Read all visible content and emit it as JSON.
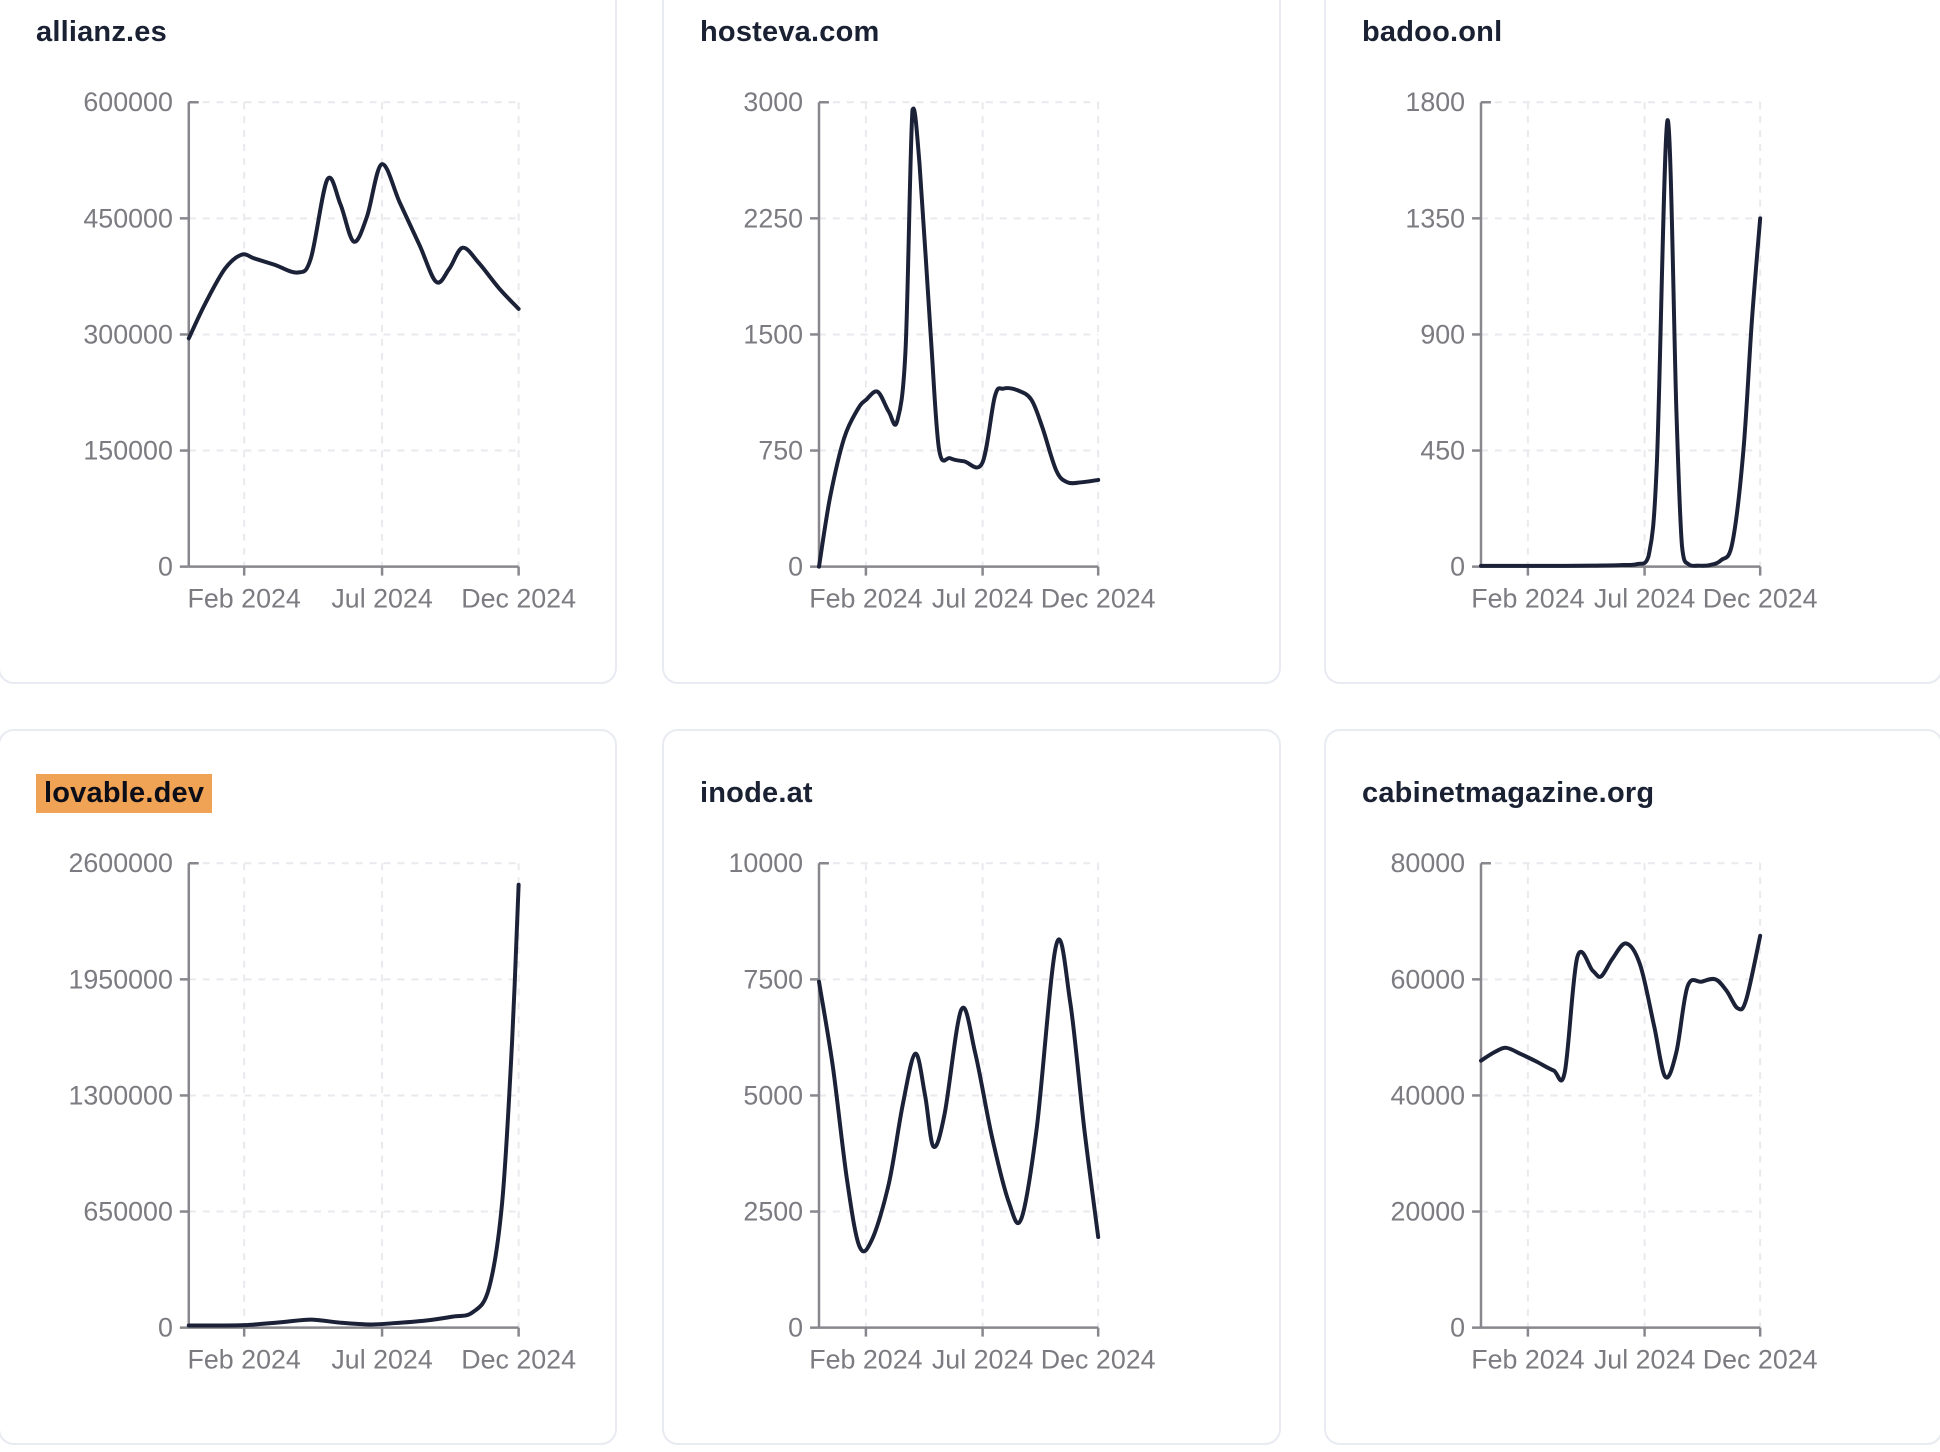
{
  "style": {
    "line_color": "#1b2137",
    "axis_color": "#87878d",
    "tick_label_color": "#7b7b81",
    "grid_color": "#e9e9ee",
    "title_color": "#1a2133",
    "highlight_color": "#f0a255",
    "card_border": "#e9ebf2",
    "card_bg": "#ffffff",
    "page_bg": "#ffffff"
  },
  "chart_data": [
    {
      "type": "line",
      "title": "allianz.es",
      "highlighted": false,
      "ylim": [
        0,
        600000
      ],
      "y_ticks": [
        0,
        150000,
        300000,
        450000,
        600000
      ],
      "x_ticks": [
        {
          "label": "Feb 2024",
          "t": 0.168
        },
        {
          "label": "Jul 2024",
          "t": 0.586
        },
        {
          "label": "Dec 2024",
          "t": 1.0
        }
      ],
      "grid": true,
      "legend": false,
      "points": [
        [
          0,
          295000
        ],
        [
          0.05,
          340000
        ],
        [
          0.11,
          385000
        ],
        [
          0.16,
          403000
        ],
        [
          0.2,
          398000
        ],
        [
          0.26,
          390000
        ],
        [
          0.33,
          380000
        ],
        [
          0.37,
          398000
        ],
        [
          0.42,
          500000
        ],
        [
          0.46,
          468000
        ],
        [
          0.5,
          420000
        ],
        [
          0.54,
          452000
        ],
        [
          0.585,
          520000
        ],
        [
          0.64,
          470000
        ],
        [
          0.7,
          415000
        ],
        [
          0.75,
          368000
        ],
        [
          0.79,
          385000
        ],
        [
          0.83,
          412000
        ],
        [
          0.88,
          392000
        ],
        [
          0.94,
          360000
        ],
        [
          1.0,
          333000
        ]
      ]
    },
    {
      "type": "line",
      "title": "hosteva.com",
      "highlighted": false,
      "ylim": [
        0,
        3000
      ],
      "y_ticks": [
        0,
        750,
        1500,
        2250,
        3000
      ],
      "x_ticks": [
        {
          "label": "Feb 2024",
          "t": 0.168
        },
        {
          "label": "Jul 2024",
          "t": 0.586
        },
        {
          "label": "Dec 2024",
          "t": 1.0
        }
      ],
      "grid": true,
      "legend": false,
      "points": [
        [
          0,
          0
        ],
        [
          0.04,
          450
        ],
        [
          0.09,
          830
        ],
        [
          0.14,
          1020
        ],
        [
          0.17,
          1080
        ],
        [
          0.21,
          1130
        ],
        [
          0.25,
          1000
        ],
        [
          0.28,
          940
        ],
        [
          0.31,
          1400
        ],
        [
          0.335,
          2950
        ],
        [
          0.36,
          2600
        ],
        [
          0.4,
          1500
        ],
        [
          0.43,
          760
        ],
        [
          0.47,
          700
        ],
        [
          0.52,
          680
        ],
        [
          0.585,
          670
        ],
        [
          0.63,
          1100
        ],
        [
          0.66,
          1150
        ],
        [
          0.71,
          1140
        ],
        [
          0.76,
          1080
        ],
        [
          0.8,
          900
        ],
        [
          0.85,
          620
        ],
        [
          0.89,
          545
        ],
        [
          0.94,
          545
        ],
        [
          1.0,
          560
        ]
      ]
    },
    {
      "type": "line",
      "title": "badoo.onl",
      "highlighted": false,
      "ylim": [
        0,
        1800
      ],
      "y_ticks": [
        0,
        450,
        900,
        1350,
        1800
      ],
      "x_ticks": [
        {
          "label": "Feb 2024",
          "t": 0.168
        },
        {
          "label": "Jul 2024",
          "t": 0.586
        },
        {
          "label": "Dec 2024",
          "t": 1.0
        }
      ],
      "grid": true,
      "legend": false,
      "points": [
        [
          0,
          3
        ],
        [
          0.1,
          3
        ],
        [
          0.2,
          3
        ],
        [
          0.3,
          3
        ],
        [
          0.4,
          4
        ],
        [
          0.5,
          6
        ],
        [
          0.56,
          10
        ],
        [
          0.6,
          40
        ],
        [
          0.63,
          400
        ],
        [
          0.668,
          1730
        ],
        [
          0.7,
          600
        ],
        [
          0.72,
          80
        ],
        [
          0.745,
          8
        ],
        [
          0.78,
          4
        ],
        [
          0.82,
          6
        ],
        [
          0.86,
          25
        ],
        [
          0.9,
          90
        ],
        [
          0.94,
          450
        ],
        [
          0.97,
          950
        ],
        [
          1.0,
          1350
        ]
      ]
    },
    {
      "type": "line",
      "title": "lovable.dev",
      "highlighted": true,
      "ylim": [
        0,
        2600000
      ],
      "y_ticks": [
        0,
        650000,
        1300000,
        1950000,
        2600000
      ],
      "x_ticks": [
        {
          "label": "Feb 2024",
          "t": 0.168
        },
        {
          "label": "Jul 2024",
          "t": 0.586
        },
        {
          "label": "Dec 2024",
          "t": 1.0
        }
      ],
      "grid": true,
      "legend": false,
      "points": [
        [
          0,
          12000
        ],
        [
          0.08,
          12000
        ],
        [
          0.17,
          14000
        ],
        [
          0.28,
          30000
        ],
        [
          0.37,
          45000
        ],
        [
          0.46,
          28000
        ],
        [
          0.55,
          18000
        ],
        [
          0.62,
          25000
        ],
        [
          0.72,
          40000
        ],
        [
          0.8,
          62000
        ],
        [
          0.86,
          85000
        ],
        [
          0.91,
          220000
        ],
        [
          0.95,
          700000
        ],
        [
          0.98,
          1600000
        ],
        [
          1.0,
          2480000
        ]
      ]
    },
    {
      "type": "line",
      "title": "inode.at",
      "highlighted": false,
      "ylim": [
        0,
        10000
      ],
      "y_ticks": [
        0,
        2500,
        5000,
        7500,
        10000
      ],
      "x_ticks": [
        {
          "label": "Feb 2024",
          "t": 0.168
        },
        {
          "label": "Jul 2024",
          "t": 0.586
        },
        {
          "label": "Dec 2024",
          "t": 1.0
        }
      ],
      "grid": true,
      "legend": false,
      "points": [
        [
          0,
          7450
        ],
        [
          0.05,
          5600
        ],
        [
          0.1,
          3200
        ],
        [
          0.145,
          1750
        ],
        [
          0.19,
          1900
        ],
        [
          0.25,
          3100
        ],
        [
          0.3,
          4800
        ],
        [
          0.345,
          5900
        ],
        [
          0.38,
          5000
        ],
        [
          0.41,
          3900
        ],
        [
          0.45,
          4600
        ],
        [
          0.51,
          6850
        ],
        [
          0.56,
          5900
        ],
        [
          0.62,
          4100
        ],
        [
          0.68,
          2700
        ],
        [
          0.725,
          2350
        ],
        [
          0.78,
          4300
        ],
        [
          0.85,
          8250
        ],
        [
          0.9,
          7000
        ],
        [
          0.95,
          4300
        ],
        [
          1.0,
          1950
        ]
      ]
    },
    {
      "type": "line",
      "title": "cabinetmagazine.org",
      "highlighted": false,
      "ylim": [
        0,
        80000
      ],
      "y_ticks": [
        0,
        20000,
        40000,
        60000,
        80000
      ],
      "x_ticks": [
        {
          "label": "Feb 2024",
          "t": 0.168
        },
        {
          "label": "Jul 2024",
          "t": 0.586
        },
        {
          "label": "Dec 2024",
          "t": 1.0
        }
      ],
      "grid": true,
      "legend": false,
      "points": [
        [
          0,
          46000
        ],
        [
          0.05,
          47500
        ],
        [
          0.09,
          48200
        ],
        [
          0.14,
          47200
        ],
        [
          0.2,
          45800
        ],
        [
          0.26,
          44300
        ],
        [
          0.3,
          44000
        ],
        [
          0.345,
          63800
        ],
        [
          0.4,
          61500
        ],
        [
          0.43,
          60500
        ],
        [
          0.47,
          63500
        ],
        [
          0.52,
          66200
        ],
        [
          0.57,
          62500
        ],
        [
          0.62,
          52000
        ],
        [
          0.66,
          43200
        ],
        [
          0.7,
          47500
        ],
        [
          0.74,
          58800
        ],
        [
          0.79,
          59600
        ],
        [
          0.84,
          60000
        ],
        [
          0.88,
          58000
        ],
        [
          0.92,
          55000
        ],
        [
          0.95,
          56500
        ],
        [
          1.0,
          67500
        ]
      ]
    }
  ]
}
